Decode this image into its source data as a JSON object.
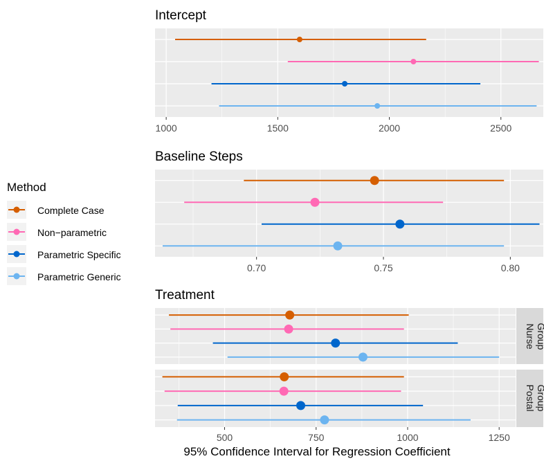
{
  "legend": {
    "title": "Method",
    "placement": "left",
    "entries": [
      {
        "label": "Complete Case",
        "color": "#D55E00"
      },
      {
        "label": "Non−parametric",
        "color": "#FF69B4"
      },
      {
        "label": "Parametric Specific",
        "color": "#0066CC"
      },
      {
        "label": "Parametric Generic",
        "color": "#6CB4F0"
      }
    ]
  },
  "colors": {
    "panel_bg": "#EBEBEB",
    "grid": "#FFFFFF",
    "strip_bg": "#D9D9D9",
    "text": "#000000",
    "tick_text": "#4D4D4D"
  },
  "chart_data": [
    {
      "type": "errorbar",
      "title": "Intercept",
      "xlim": [
        950,
        2690
      ],
      "xticks": [
        1000,
        1500,
        2000,
        2500
      ],
      "xtick_labels": [
        "1000",
        "1500",
        "2000",
        "2500"
      ],
      "grid": true,
      "series": [
        {
          "name": "Complete Case",
          "estimate": 1598,
          "lower": 1040,
          "upper": 2165
        },
        {
          "name": "Non−parametric",
          "estimate": 2108,
          "lower": 1545,
          "upper": 2670
        },
        {
          "name": "Parametric Specific",
          "estimate": 1800,
          "lower": 1203,
          "upper": 2408
        },
        {
          "name": "Parametric Generic",
          "estimate": 1946,
          "lower": 1237,
          "upper": 2660
        }
      ]
    },
    {
      "type": "errorbar",
      "title": "Baseline Steps",
      "xlim": [
        0.66,
        0.813
      ],
      "xticks": [
        0.7,
        0.75,
        0.8
      ],
      "xtick_labels": [
        "0.70",
        "0.75",
        "0.80"
      ],
      "grid": true,
      "series": [
        {
          "name": "Complete Case",
          "estimate": 0.7465,
          "lower": 0.695,
          "upper": 0.7975
        },
        {
          "name": "Non−parametric",
          "estimate": 0.723,
          "lower": 0.6715,
          "upper": 0.7735
        },
        {
          "name": "Parametric Specific",
          "estimate": 0.7565,
          "lower": 0.702,
          "upper": 0.8115
        },
        {
          "name": "Parametric Generic",
          "estimate": 0.732,
          "lower": 0.663,
          "upper": 0.7975
        }
      ]
    },
    {
      "type": "errorbar",
      "title": "Treatment",
      "xlabel": "95% Confidence Interval for Regression Coefficient",
      "xlim": [
        310,
        1295
      ],
      "xticks": [
        500,
        750,
        1000,
        1250
      ],
      "xtick_labels": [
        "500",
        "750",
        "1000",
        "1250"
      ],
      "grid": true,
      "facets": [
        {
          "strip": [
            "Nurse",
            "Group"
          ],
          "series": [
            {
              "name": "Complete Case",
              "estimate": 678,
              "lower": 348,
              "upper": 1003
            },
            {
              "name": "Non−parametric",
              "estimate": 675,
              "lower": 352,
              "upper": 990
            },
            {
              "name": "Parametric Specific",
              "estimate": 803,
              "lower": 468,
              "upper": 1137
            },
            {
              "name": "Parametric Generic",
              "estimate": 878,
              "lower": 508,
              "upper": 1250
            }
          ]
        },
        {
          "strip": [
            "Postal",
            "Group"
          ],
          "series": [
            {
              "name": "Complete Case",
              "estimate": 663,
              "lower": 330,
              "upper": 990
            },
            {
              "name": "Non−parametric",
              "estimate": 662,
              "lower": 336,
              "upper": 982
            },
            {
              "name": "Parametric Specific",
              "estimate": 708,
              "lower": 372,
              "upper": 1042
            },
            {
              "name": "Parametric Generic",
              "estimate": 773,
              "lower": 370,
              "upper": 1172
            }
          ]
        }
      ]
    }
  ]
}
